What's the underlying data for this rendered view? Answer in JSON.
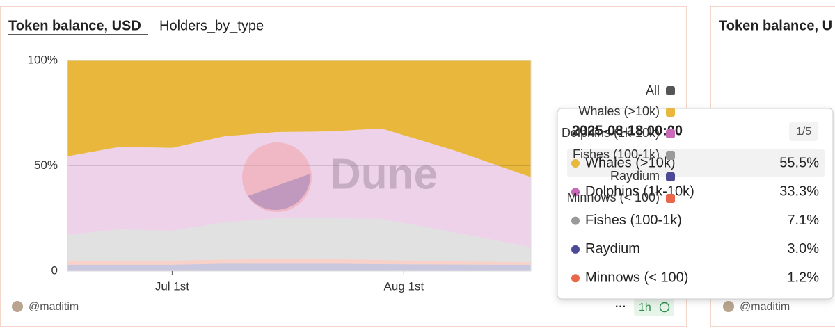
{
  "dashboard": {
    "card_title": "Token balance, USD",
    "tab": "Holders_by_type",
    "author": "@maditim",
    "refresh": "1h",
    "menu": "···",
    "watermark": "Dune",
    "legend_all": "All",
    "right_card_title": "Token balance, U",
    "right_card_author": "@maditim"
  },
  "chart_data": {
    "type": "stacked_area",
    "x": [
      "2025-06-17",
      "2025-06-24",
      "2025-07-01",
      "2025-07-08",
      "2025-07-15",
      "2025-07-22",
      "2025-07-29",
      "2025-08-08",
      "2025-08-18"
    ],
    "xlim": [
      "2025-06-17",
      "2025-08-18"
    ],
    "xticks": [
      {
        "value": "2025-07-01",
        "label": "Jul 1st"
      },
      {
        "value": "2025-08-01",
        "label": "Aug 1st"
      }
    ],
    "ylim": [
      0,
      100
    ],
    "yticks": [
      0,
      {
        "value": 50,
        "label": "50%"
      },
      {
        "value": 100,
        "label": "100%"
      }
    ],
    "grid": true,
    "series": [
      {
        "name": "Whales (>10k)",
        "color": "#e8b73b",
        "values": [
          45.5,
          41,
          41.5,
          36,
          34,
          33.7,
          32.3,
          43,
          55.5
        ]
      },
      {
        "name": "Dolphins (1k-10k)",
        "color": "#c869b9",
        "values": [
          37.3,
          39.2,
          39.4,
          40.9,
          40.9,
          41.2,
          42.9,
          38.8,
          33.3
        ]
      },
      {
        "name": "Fishes (100-1k)",
        "color": "#9a9a9a",
        "values": [
          12.4,
          14.8,
          14.1,
          17.6,
          19.4,
          19.4,
          19.5,
          13.6,
          7.1
        ]
      },
      {
        "name": "Raydium",
        "color": "#4c4a96",
        "values": [
          3,
          3,
          3,
          3.5,
          3.5,
          3.5,
          3.3,
          3.1,
          3.0
        ]
      },
      {
        "name": "Minnows (< 100)",
        "color": "#e8664a",
        "values": [
          1.8,
          2,
          2,
          2,
          2.2,
          2.2,
          2,
          1.5,
          1.2
        ]
      }
    ],
    "tooltip": {
      "title": "2025-08-18 00:00",
      "page": "1/5",
      "value_labels": [
        "55.5%",
        "33.3%",
        "7.1%",
        "3.0%",
        "1.2%"
      ]
    }
  }
}
